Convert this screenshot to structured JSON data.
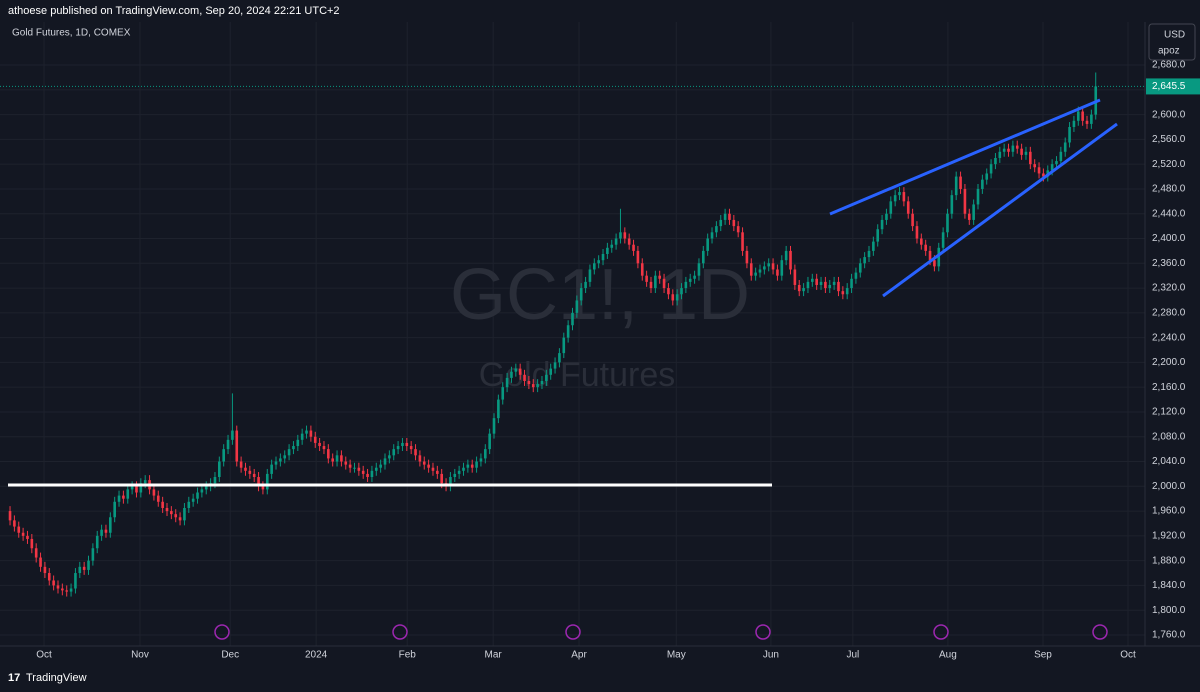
{
  "header": "athoese published on TradingView.com, Sep 20, 2024 22:21 UTC+2",
  "brand": "TradingView",
  "chart_data": {
    "type": "candlestick",
    "title": "Gold Futures, 1D, COMEX",
    "watermark": "GC1!, 1D",
    "watermark_subtitle": "Gold Futures",
    "currency": "USD",
    "unit_label": "apoz",
    "up_color": "#089981",
    "down_color": "#f23645",
    "grid": true,
    "open": [
      1960,
      1945,
      1935,
      1925,
      1920,
      1915,
      1900,
      1885,
      1870,
      1860,
      1848,
      1840,
      1835,
      1832,
      1830,
      1835,
      1860,
      1870,
      1865,
      1880,
      1900,
      1920,
      1930,
      1925,
      1950,
      1975,
      1985,
      1980,
      1995,
      2000,
      1990,
      2005,
      2010,
      1995,
      1985,
      1975,
      1965,
      1960,
      1955,
      1950,
      1945,
      1965,
      1975,
      1980,
      1990,
      1995,
      2000,
      2005,
      2015,
      2040,
      2060,
      2075,
      2090,
      2040,
      2030,
      2025,
      2020,
      2015,
      2000,
      1995,
      2020,
      2035,
      2040,
      2045,
      2050,
      2060,
      2065,
      2075,
      2085,
      2090,
      2080,
      2070,
      2065,
      2060,
      2045,
      2040,
      2050,
      2040,
      2035,
      2030,
      2030,
      2025,
      2020,
      2015,
      2025,
      2030,
      2035,
      2045,
      2050,
      2060,
      2065,
      2070,
      2065,
      2060,
      2050,
      2040,
      2035,
      2030,
      2025,
      2020,
      2005,
      2000,
      2015,
      2020,
      2025,
      2030,
      2035,
      2030,
      2040,
      2045,
      2060,
      2085,
      2110,
      2140,
      2160,
      2175,
      2185,
      2190,
      2180,
      2170,
      2165,
      2160,
      2165,
      2170,
      2180,
      2190,
      2200,
      2215,
      2240,
      2260,
      2280,
      2300,
      2320,
      2330,
      2350,
      2360,
      2365,
      2375,
      2385,
      2390,
      2400,
      2410,
      2400,
      2390,
      2380,
      2360,
      2340,
      2330,
      2320,
      2340,
      2335,
      2320,
      2310,
      2300,
      2310,
      2320,
      2330,
      2335,
      2340,
      2360,
      2380,
      2400,
      2410,
      2420,
      2430,
      2440,
      2430,
      2420,
      2410,
      2380,
      2360,
      2340,
      2345,
      2350,
      2355,
      2360,
      2350,
      2340,
      2365,
      2380,
      2350,
      2325,
      2315,
      2320,
      2330,
      2335,
      2325,
      2330,
      2320,
      2325,
      2330,
      2315,
      2310,
      2320,
      2335,
      2345,
      2360,
      2370,
      2380,
      2395,
      2415,
      2430,
      2440,
      2460,
      2470,
      2475,
      2460,
      2440,
      2420,
      2400,
      2390,
      2380,
      2365,
      2355,
      2385,
      2410,
      2440,
      2470,
      2500,
      2480,
      2440,
      2430,
      2455,
      2480,
      2495,
      2505,
      2520,
      2530,
      2540,
      2545,
      2540,
      2550,
      2545,
      2535,
      2540,
      2520,
      2515,
      2505,
      2500,
      2510,
      2520,
      2525,
      2540,
      2555,
      2580,
      2590,
      2605,
      2590,
      2585,
      2600
    ],
    "high": [
      1968,
      1953,
      1943,
      1933,
      1928,
      1923,
      1908,
      1893,
      1878,
      1868,
      1856,
      1848,
      1843,
      1840,
      1843,
      1868,
      1878,
      1878,
      1888,
      1908,
      1928,
      1938,
      1938,
      1958,
      1983,
      1993,
      1993,
      2003,
      2008,
      2008,
      2013,
      2018,
      2018,
      2003,
      1993,
      1983,
      1973,
      1968,
      1963,
      1958,
      1973,
      1983,
      1988,
      1998,
      2003,
      2008,
      2013,
      2023,
      2048,
      2068,
      2083,
      2150,
      2098,
      2048,
      2038,
      2033,
      2028,
      2023,
      2008,
      2028,
      2043,
      2048,
      2053,
      2058,
      2068,
      2073,
      2083,
      2093,
      2098,
      2098,
      2088,
      2078,
      2073,
      2068,
      2053,
      2058,
      2058,
      2048,
      2043,
      2038,
      2038,
      2033,
      2028,
      2033,
      2038,
      2043,
      2053,
      2058,
      2068,
      2073,
      2078,
      2078,
      2073,
      2068,
      2058,
      2048,
      2043,
      2038,
      2033,
      2028,
      2013,
      2023,
      2028,
      2033,
      2038,
      2043,
      2043,
      2048,
      2053,
      2068,
      2093,
      2118,
      2148,
      2168,
      2183,
      2193,
      2198,
      2198,
      2188,
      2178,
      2173,
      2173,
      2178,
      2188,
      2198,
      2208,
      2223,
      2248,
      2268,
      2288,
      2308,
      2328,
      2338,
      2358,
      2368,
      2373,
      2383,
      2393,
      2398,
      2408,
      2448,
      2418,
      2408,
      2398,
      2388,
      2368,
      2348,
      2338,
      2348,
      2348,
      2343,
      2328,
      2318,
      2318,
      2328,
      2338,
      2343,
      2348,
      2368,
      2388,
      2408,
      2418,
      2428,
      2438,
      2448,
      2448,
      2438,
      2428,
      2418,
      2388,
      2368,
      2353,
      2358,
      2363,
      2368,
      2368,
      2358,
      2373,
      2388,
      2388,
      2358,
      2333,
      2328,
      2338,
      2343,
      2343,
      2338,
      2338,
      2333,
      2338,
      2338,
      2323,
      2328,
      2343,
      2353,
      2368,
      2378,
      2388,
      2403,
      2423,
      2438,
      2448,
      2468,
      2478,
      2483,
      2483,
      2468,
      2448,
      2428,
      2408,
      2398,
      2388,
      2373,
      2393,
      2418,
      2448,
      2478,
      2508,
      2508,
      2488,
      2448,
      2463,
      2488,
      2503,
      2513,
      2528,
      2538,
      2548,
      2553,
      2553,
      2558,
      2558,
      2553,
      2548,
      2548,
      2528,
      2523,
      2513,
      2518,
      2528,
      2533,
      2548,
      2563,
      2588,
      2598,
      2613,
      2613,
      2598,
      2608,
      2668
    ],
    "low": [
      1937,
      1927,
      1917,
      1912,
      1907,
      1892,
      1877,
      1862,
      1852,
      1840,
      1832,
      1827,
      1824,
      1822,
      1822,
      1827,
      1852,
      1857,
      1857,
      1872,
      1892,
      1912,
      1917,
      1917,
      1942,
      1967,
      1972,
      1972,
      1987,
      1982,
      1982,
      1997,
      1987,
      1977,
      1967,
      1957,
      1952,
      1947,
      1942,
      1937,
      1937,
      1957,
      1967,
      1972,
      1982,
      1987,
      1992,
      1997,
      2007,
      2032,
      2052,
      2067,
      2032,
      2022,
      2017,
      2012,
      2007,
      1992,
      1987,
      1987,
      2012,
      2027,
      2032,
      2037,
      2042,
      2052,
      2057,
      2067,
      2077,
      2072,
      2062,
      2057,
      2052,
      2037,
      2032,
      2032,
      2032,
      2027,
      2022,
      2022,
      2017,
      2012,
      2007,
      2007,
      2017,
      2022,
      2027,
      2037,
      2042,
      2052,
      2057,
      2057,
      2052,
      2042,
      2032,
      2027,
      2022,
      2017,
      2012,
      1997,
      1992,
      1992,
      2007,
      2012,
      2017,
      2022,
      2022,
      2022,
      2032,
      2037,
      2052,
      2077,
      2102,
      2132,
      2152,
      2167,
      2177,
      2172,
      2162,
      2157,
      2152,
      2152,
      2157,
      2162,
      2172,
      2182,
      2192,
      2207,
      2232,
      2252,
      2272,
      2292,
      2312,
      2322,
      2342,
      2352,
      2357,
      2367,
      2377,
      2382,
      2392,
      2392,
      2382,
      2372,
      2352,
      2332,
      2322,
      2312,
      2312,
      2327,
      2312,
      2302,
      2292,
      2292,
      2302,
      2312,
      2322,
      2327,
      2332,
      2352,
      2372,
      2392,
      2402,
      2412,
      2422,
      2422,
      2412,
      2402,
      2372,
      2352,
      2332,
      2332,
      2337,
      2342,
      2347,
      2342,
      2332,
      2332,
      2357,
      2342,
      2317,
      2307,
      2307,
      2312,
      2322,
      2317,
      2317,
      2312,
      2312,
      2317,
      2307,
      2302,
      2302,
      2312,
      2327,
      2337,
      2352,
      2362,
      2372,
      2387,
      2407,
      2422,
      2432,
      2452,
      2462,
      2452,
      2432,
      2412,
      2392,
      2382,
      2372,
      2357,
      2347,
      2347,
      2377,
      2402,
      2432,
      2462,
      2472,
      2432,
      2422,
      2422,
      2447,
      2472,
      2487,
      2497,
      2512,
      2522,
      2532,
      2532,
      2532,
      2537,
      2527,
      2527,
      2512,
      2507,
      2497,
      2492,
      2492,
      2502,
      2512,
      2517,
      2532,
      2547,
      2572,
      2582,
      2582,
      2577,
      2577,
      2592
    ],
    "close": [
      1945,
      1935,
      1925,
      1920,
      1915,
      1900,
      1885,
      1870,
      1860,
      1848,
      1840,
      1835,
      1832,
      1830,
      1835,
      1860,
      1870,
      1865,
      1880,
      1900,
      1920,
      1930,
      1925,
      1950,
      1975,
      1985,
      1980,
      1995,
      2000,
      1990,
      2005,
      2010,
      1995,
      1985,
      1975,
      1965,
      1960,
      1955,
      1950,
      1945,
      1965,
      1975,
      1980,
      1990,
      1995,
      2000,
      2005,
      2015,
      2040,
      2060,
      2075,
      2090,
      2040,
      2030,
      2025,
      2020,
      2015,
      2000,
      1995,
      2020,
      2035,
      2040,
      2045,
      2050,
      2060,
      2065,
      2075,
      2085,
      2090,
      2080,
      2070,
      2065,
      2060,
      2045,
      2040,
      2050,
      2040,
      2035,
      2030,
      2030,
      2025,
      2020,
      2015,
      2025,
      2030,
      2035,
      2045,
      2050,
      2060,
      2065,
      2070,
      2065,
      2060,
      2050,
      2040,
      2035,
      2030,
      2025,
      2020,
      2005,
      2000,
      2015,
      2020,
      2025,
      2030,
      2035,
      2030,
      2040,
      2045,
      2060,
      2085,
      2110,
      2140,
      2160,
      2175,
      2185,
      2190,
      2180,
      2170,
      2165,
      2160,
      2165,
      2170,
      2180,
      2190,
      2200,
      2215,
      2240,
      2260,
      2280,
      2300,
      2320,
      2330,
      2350,
      2360,
      2365,
      2375,
      2385,
      2390,
      2400,
      2410,
      2400,
      2390,
      2380,
      2360,
      2340,
      2330,
      2320,
      2340,
      2335,
      2320,
      2310,
      2300,
      2310,
      2320,
      2330,
      2335,
      2340,
      2360,
      2380,
      2400,
      2410,
      2420,
      2430,
      2440,
      2430,
      2420,
      2410,
      2380,
      2360,
      2340,
      2345,
      2350,
      2355,
      2360,
      2350,
      2340,
      2365,
      2380,
      2350,
      2325,
      2315,
      2320,
      2330,
      2335,
      2325,
      2330,
      2320,
      2325,
      2330,
      2315,
      2310,
      2320,
      2335,
      2345,
      2360,
      2370,
      2380,
      2395,
      2415,
      2430,
      2440,
      2460,
      2470,
      2475,
      2460,
      2440,
      2420,
      2400,
      2390,
      2380,
      2365,
      2355,
      2385,
      2410,
      2440,
      2470,
      2500,
      2480,
      2440,
      2430,
      2455,
      2480,
      2495,
      2505,
      2520,
      2530,
      2540,
      2545,
      2540,
      2550,
      2545,
      2535,
      2540,
      2520,
      2515,
      2505,
      2500,
      2510,
      2520,
      2525,
      2540,
      2555,
      2580,
      2590,
      2605,
      2590,
      2585,
      2600,
      2645.5
    ],
    "last_label": "2,645.5",
    "ylim": [
      1742.2,
      2749.5
    ],
    "yticks": [
      {
        "value": 1760,
        "label": "1,760.0"
      },
      {
        "value": 1800,
        "label": "1,800.0"
      },
      {
        "value": 1840,
        "label": "1,840.0"
      },
      {
        "value": 1880,
        "label": "1,880.0"
      },
      {
        "value": 1920,
        "label": "1,920.0"
      },
      {
        "value": 1960,
        "label": "1,960.0"
      },
      {
        "value": 2000,
        "label": "2,000.0"
      },
      {
        "value": 2040,
        "label": "2,040.0"
      },
      {
        "value": 2080,
        "label": "2,080.0"
      },
      {
        "value": 2120,
        "label": "2,120.0"
      },
      {
        "value": 2160,
        "label": "2,160.0"
      },
      {
        "value": 2200,
        "label": "2,200.0"
      },
      {
        "value": 2240,
        "label": "2,240.0"
      },
      {
        "value": 2280,
        "label": "2,280.0"
      },
      {
        "value": 2320,
        "label": "2,320.0"
      },
      {
        "value": 2360,
        "label": "2,360.0"
      },
      {
        "value": 2400,
        "label": "2,400.0"
      },
      {
        "value": 2440,
        "label": "2,440.0"
      },
      {
        "value": 2480,
        "label": "2,480.0"
      },
      {
        "value": 2520,
        "label": "2,520.0"
      },
      {
        "value": 2560,
        "label": "2,560.0"
      },
      {
        "value": 2600,
        "label": "2,600.0"
      },
      {
        "value": 2640,
        "label": "2,640.0"
      },
      {
        "value": 2680,
        "label": "2,680.0"
      }
    ],
    "xlim": [
      -2.3,
      260.3
    ],
    "xticks": [
      {
        "value": 7.8,
        "label": "Oct"
      },
      {
        "value": 29.8,
        "label": "Nov"
      },
      {
        "value": 50.5,
        "label": "Dec"
      },
      {
        "value": 70.2,
        "label": "2024"
      },
      {
        "value": 91.1,
        "label": "Feb"
      },
      {
        "value": 110.8,
        "label": "Mar"
      },
      {
        "value": 130.5,
        "label": "Apr"
      },
      {
        "value": 152.8,
        "label": "May"
      },
      {
        "value": 174.5,
        "label": "Jun"
      },
      {
        "value": 193.3,
        "label": "Jul"
      },
      {
        "value": 215.1,
        "label": "Aug"
      },
      {
        "value": 236.9,
        "label": "Sep"
      },
      {
        "value": 256.4,
        "label": "Oct"
      }
    ]
  }
}
